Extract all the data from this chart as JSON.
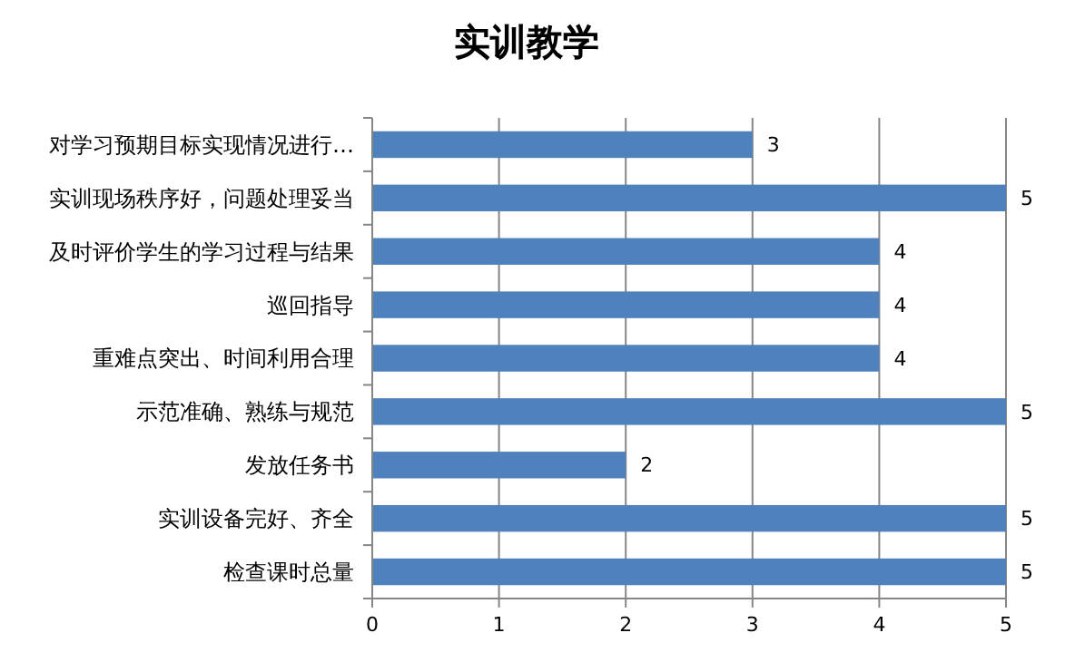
{
  "chart_data": {
    "type": "bar",
    "orientation": "horizontal",
    "title": "实训教学",
    "categories": [
      "对学习预期目标实现情况进行…",
      "实训现场秩序好，问题处理妥当",
      "及时评价学生的学习过程与结果",
      "巡回指导",
      "重难点突出、时间利用合理",
      "示范准确、熟练与规范",
      "发放任务书",
      "实训设备完好、齐全",
      "检查课时总量"
    ],
    "values": [
      3,
      5,
      4,
      4,
      4,
      5,
      2,
      5,
      5
    ],
    "color": "#4f81bd",
    "xlim": [
      0,
      5
    ],
    "xticks": [
      0,
      1,
      2,
      3,
      4,
      5
    ],
    "grid": "x",
    "data_labels": true
  }
}
